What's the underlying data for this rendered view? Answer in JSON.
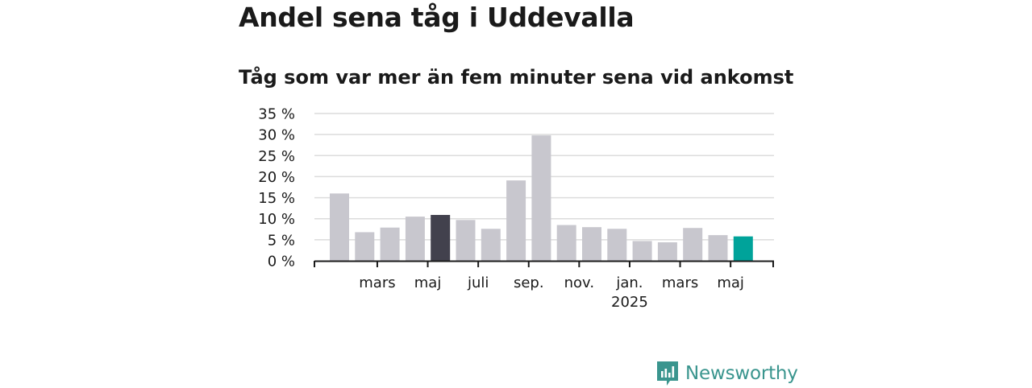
{
  "title": "Andel sena tåg i Uddevalla",
  "subtitle": "Tåg som var mer än fem minuter sena vid ankomst",
  "brand": {
    "name": "Newsworthy",
    "icon": "newsworthy-logo-icon",
    "color": "#3a958e"
  },
  "chart_data": {
    "type": "bar",
    "values": [
      16,
      6.8,
      7.9,
      10.5,
      10.9,
      9.7,
      7.6,
      19.1,
      29.8,
      8.5,
      8.0,
      7.6,
      4.7,
      4.4,
      7.8,
      6.1,
      5.8
    ],
    "bar_colors": [
      "#c8c7ce",
      "#c8c7ce",
      "#c8c7ce",
      "#c8c7ce",
      "#42414d",
      "#c8c7ce",
      "#c8c7ce",
      "#c8c7ce",
      "#c8c7ce",
      "#c8c7ce",
      "#c8c7ce",
      "#c8c7ce",
      "#c8c7ce",
      "#c8c7ce",
      "#c8c7ce",
      "#c8c7ce",
      "#00a39a"
    ],
    "colors": {
      "default": "#c8c7ce",
      "highlight_dark": "#42414d",
      "highlight_latest": "#00a39a"
    },
    "y_ticks": [
      "0 %",
      "5 %",
      "10 %",
      "15 %",
      "20 %",
      "25 %",
      "30 %",
      "35 %"
    ],
    "ylim": [
      0,
      35
    ],
    "x_tick_labels": [
      {
        "bar_index": 1.5,
        "label": "mars",
        "sublabel": ""
      },
      {
        "bar_index": 3.5,
        "label": "maj",
        "sublabel": ""
      },
      {
        "bar_index": 5.5,
        "label": "juli",
        "sublabel": ""
      },
      {
        "bar_index": 7.5,
        "label": "sep.",
        "sublabel": ""
      },
      {
        "bar_index": 9.5,
        "label": "nov.",
        "sublabel": ""
      },
      {
        "bar_index": 11.5,
        "label": "jan.",
        "sublabel": "2025"
      },
      {
        "bar_index": 13.5,
        "label": "mars",
        "sublabel": ""
      },
      {
        "bar_index": 15.5,
        "label": "maj",
        "sublabel": ""
      }
    ],
    "grid": true,
    "legend": "none"
  }
}
